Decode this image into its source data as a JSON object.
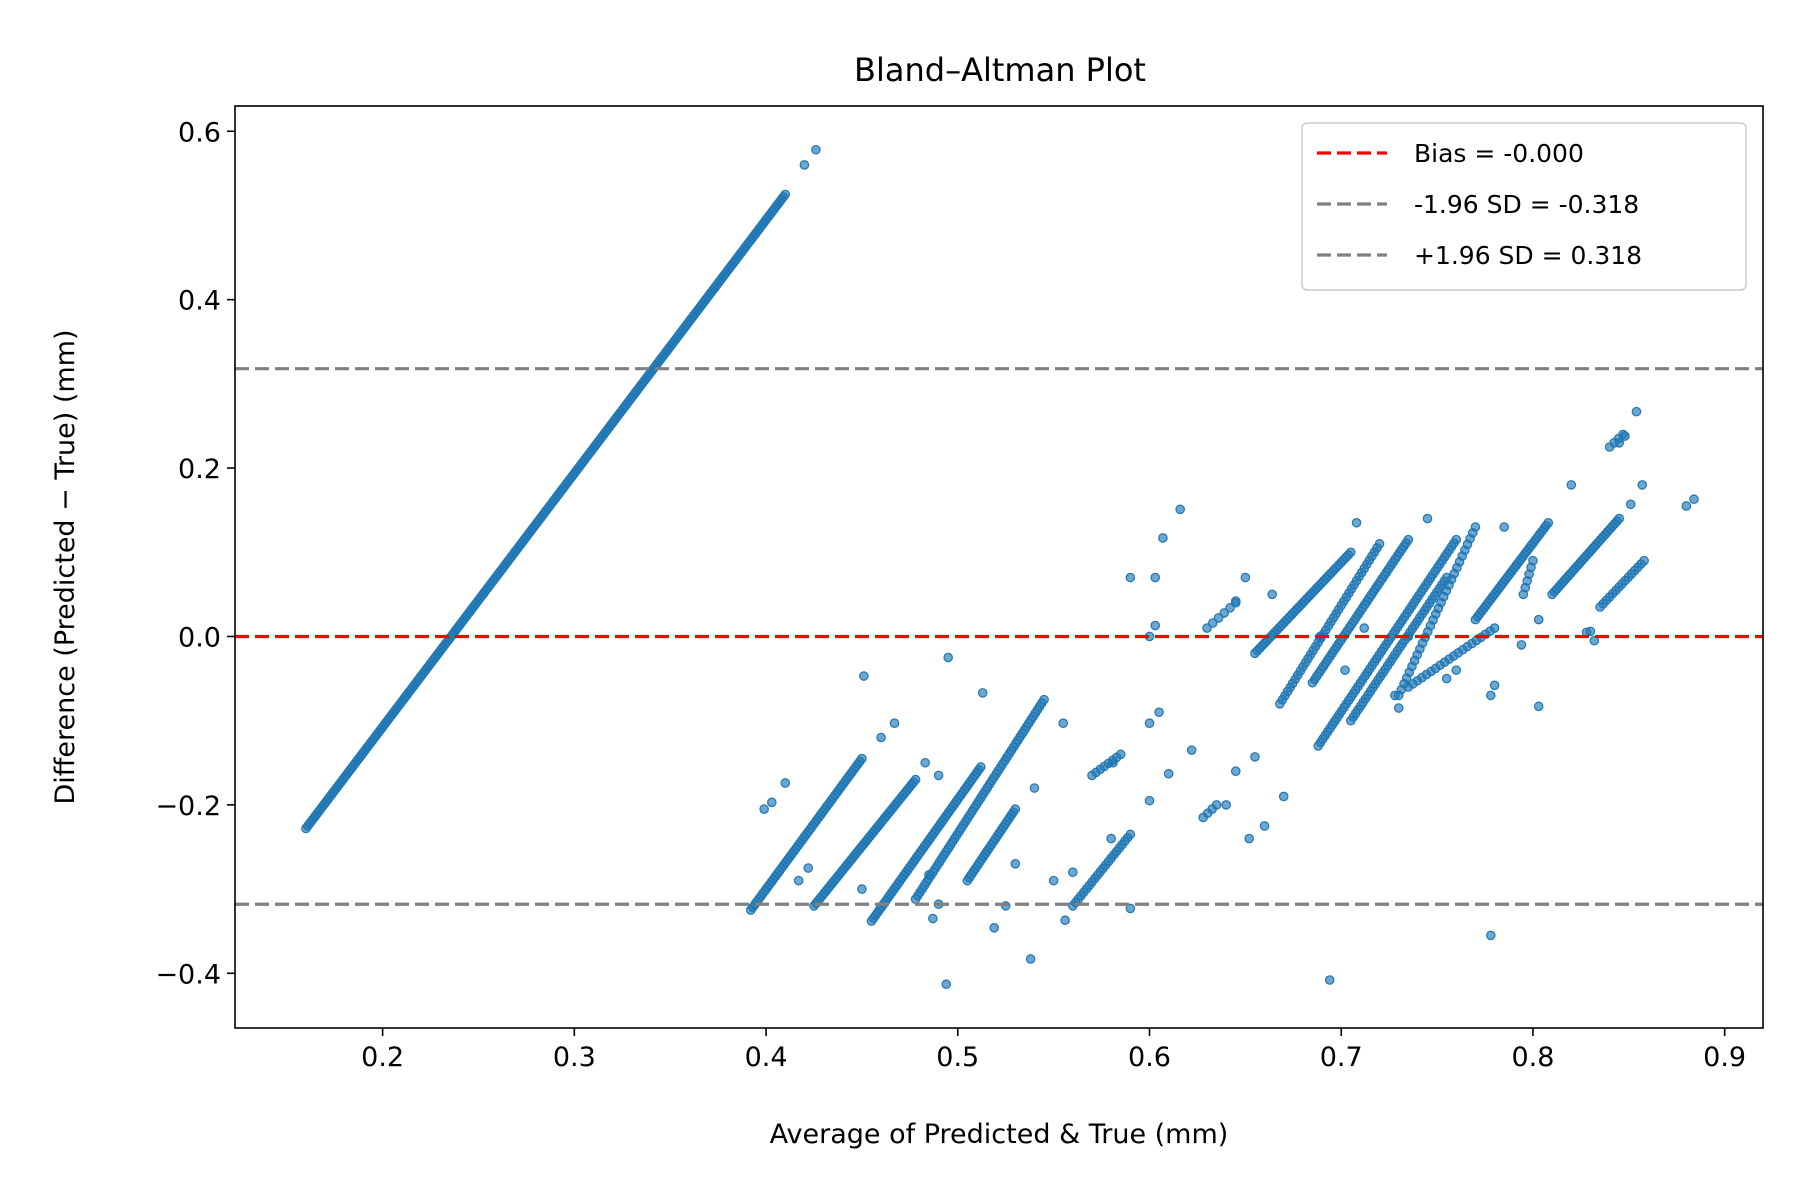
{
  "chart_data": {
    "type": "scatter",
    "title": "Bland–Altman Plot",
    "xlabel": "Average of Predicted & True (mm)",
    "ylabel": "Difference (Predicted − True) (mm)",
    "xlim": [
      0.123,
      0.92
    ],
    "ylim": [
      -0.465,
      0.63
    ],
    "x_ticks": [
      0.2,
      0.3,
      0.4,
      0.5,
      0.6,
      0.7,
      0.8,
      0.9
    ],
    "x_tick_labels": [
      "0.2",
      "0.3",
      "0.4",
      "0.5",
      "0.6",
      "0.7",
      "0.8",
      "0.9"
    ],
    "y_ticks": [
      -0.4,
      -0.2,
      0.0,
      0.2,
      0.4,
      0.6
    ],
    "y_tick_labels": [
      "−0.4",
      "−0.2",
      "0.0",
      "0.2",
      "0.4",
      "0.6"
    ],
    "grid": false,
    "legend_position": "top-right",
    "point_color": "#1f77b4",
    "reference_lines": [
      {
        "label": "Bias = -0.000",
        "y": 0.0,
        "color": "#ff0000"
      },
      {
        "label": "-1.96 SD = -0.318",
        "y": -0.318,
        "color": "#808080"
      },
      {
        "label": "+1.96 SD = 0.318",
        "y": 0.318,
        "color": "#808080"
      }
    ],
    "segments": [
      {
        "x0": 0.16,
        "y0": -0.228,
        "x1": 0.41,
        "y1": 0.525,
        "n": 260
      },
      {
        "x0": 0.392,
        "y0": -0.325,
        "x1": 0.45,
        "y1": -0.145,
        "n": 55
      },
      {
        "x0": 0.425,
        "y0": -0.32,
        "x1": 0.478,
        "y1": -0.17,
        "n": 50
      },
      {
        "x0": 0.455,
        "y0": -0.338,
        "x1": 0.512,
        "y1": -0.155,
        "n": 55
      },
      {
        "x0": 0.478,
        "y0": -0.312,
        "x1": 0.545,
        "y1": -0.075,
        "n": 60
      },
      {
        "x0": 0.505,
        "y0": -0.29,
        "x1": 0.53,
        "y1": -0.205,
        "n": 25
      },
      {
        "x0": 0.56,
        "y0": -0.32,
        "x1": 0.59,
        "y1": -0.235,
        "n": 22
      },
      {
        "x0": 0.57,
        "y0": -0.165,
        "x1": 0.585,
        "y1": -0.14,
        "n": 8
      },
      {
        "x0": 0.628,
        "y0": -0.215,
        "x1": 0.635,
        "y1": -0.2,
        "n": 4
      },
      {
        "x0": 0.63,
        "y0": 0.01,
        "x1": 0.645,
        "y1": 0.04,
        "n": 6
      },
      {
        "x0": 0.655,
        "y0": -0.02,
        "x1": 0.705,
        "y1": 0.1,
        "n": 40
      },
      {
        "x0": 0.668,
        "y0": -0.08,
        "x1": 0.72,
        "y1": 0.11,
        "n": 40
      },
      {
        "x0": 0.685,
        "y0": -0.055,
        "x1": 0.735,
        "y1": 0.115,
        "n": 45
      },
      {
        "x0": 0.688,
        "y0": -0.13,
        "x1": 0.76,
        "y1": 0.115,
        "n": 60
      },
      {
        "x0": 0.705,
        "y0": -0.1,
        "x1": 0.755,
        "y1": 0.07,
        "n": 40
      },
      {
        "x0": 0.73,
        "y0": -0.07,
        "x1": 0.77,
        "y1": 0.13,
        "n": 30
      },
      {
        "x0": 0.735,
        "y0": -0.06,
        "x1": 0.78,
        "y1": 0.01,
        "n": 20
      },
      {
        "x0": 0.77,
        "y0": 0.02,
        "x1": 0.808,
        "y1": 0.135,
        "n": 35
      },
      {
        "x0": 0.795,
        "y0": 0.05,
        "x1": 0.8,
        "y1": 0.09,
        "n": 6
      },
      {
        "x0": 0.81,
        "y0": 0.05,
        "x1": 0.845,
        "y1": 0.14,
        "n": 30
      },
      {
        "x0": 0.835,
        "y0": 0.035,
        "x1": 0.858,
        "y1": 0.09,
        "n": 15
      },
      {
        "x0": 0.84,
        "y0": 0.225,
        "x1": 0.847,
        "y1": 0.24,
        "n": 4
      }
    ],
    "points": [
      [
        0.426,
        0.578
      ],
      [
        0.42,
        0.56
      ],
      [
        0.399,
        -0.205
      ],
      [
        0.403,
        -0.197
      ],
      [
        0.41,
        -0.174
      ],
      [
        0.417,
        -0.29
      ],
      [
        0.422,
        -0.275
      ],
      [
        0.451,
        -0.047
      ],
      [
        0.45,
        -0.3
      ],
      [
        0.46,
        -0.12
      ],
      [
        0.467,
        -0.103
      ],
      [
        0.483,
        -0.15
      ],
      [
        0.49,
        -0.165
      ],
      [
        0.495,
        -0.025
      ],
      [
        0.485,
        -0.283
      ],
      [
        0.487,
        -0.335
      ],
      [
        0.49,
        -0.318
      ],
      [
        0.494,
        -0.413
      ],
      [
        0.513,
        -0.067
      ],
      [
        0.519,
        -0.346
      ],
      [
        0.525,
        -0.32
      ],
      [
        0.53,
        -0.27
      ],
      [
        0.538,
        -0.383
      ],
      [
        0.54,
        -0.18
      ],
      [
        0.55,
        -0.29
      ],
      [
        0.556,
        -0.337
      ],
      [
        0.56,
        -0.28
      ],
      [
        0.555,
        -0.103
      ],
      [
        0.581,
        -0.15
      ],
      [
        0.59,
        -0.323
      ],
      [
        0.58,
        -0.24
      ],
      [
        0.6,
        -0.195
      ],
      [
        0.6,
        -0.103
      ],
      [
        0.605,
        -0.09
      ],
      [
        0.603,
        0.07
      ],
      [
        0.59,
        0.07
      ],
      [
        0.6,
        0.0
      ],
      [
        0.603,
        0.013
      ],
      [
        0.607,
        0.117
      ],
      [
        0.616,
        0.151
      ],
      [
        0.61,
        -0.163
      ],
      [
        0.622,
        -0.135
      ],
      [
        0.64,
        -0.2
      ],
      [
        0.645,
        -0.16
      ],
      [
        0.652,
        -0.24
      ],
      [
        0.655,
        -0.143
      ],
      [
        0.66,
        -0.225
      ],
      [
        0.67,
        -0.19
      ],
      [
        0.645,
        0.042
      ],
      [
        0.65,
        0.07
      ],
      [
        0.664,
        0.05
      ],
      [
        0.689,
        0.0
      ],
      [
        0.702,
        -0.04
      ],
      [
        0.708,
        0.135
      ],
      [
        0.712,
        0.01
      ],
      [
        0.728,
        -0.07
      ],
      [
        0.73,
        -0.085
      ],
      [
        0.735,
        0.0
      ],
      [
        0.745,
        0.14
      ],
      [
        0.755,
        -0.05
      ],
      [
        0.76,
        -0.04
      ],
      [
        0.778,
        -0.07
      ],
      [
        0.78,
        -0.058
      ],
      [
        0.785,
        0.13
      ],
      [
        0.794,
        -0.01
      ],
      [
        0.803,
        -0.083
      ],
      [
        0.803,
        0.02
      ],
      [
        0.82,
        0.18
      ],
      [
        0.828,
        0.005
      ],
      [
        0.83,
        0.006
      ],
      [
        0.832,
        -0.005
      ],
      [
        0.845,
        0.23
      ],
      [
        0.848,
        0.238
      ],
      [
        0.851,
        0.157
      ],
      [
        0.854,
        0.267
      ],
      [
        0.857,
        0.18
      ],
      [
        0.778,
        -0.355
      ],
      [
        0.694,
        -0.408
      ],
      [
        0.88,
        0.155
      ],
      [
        0.884,
        0.163
      ]
    ]
  }
}
